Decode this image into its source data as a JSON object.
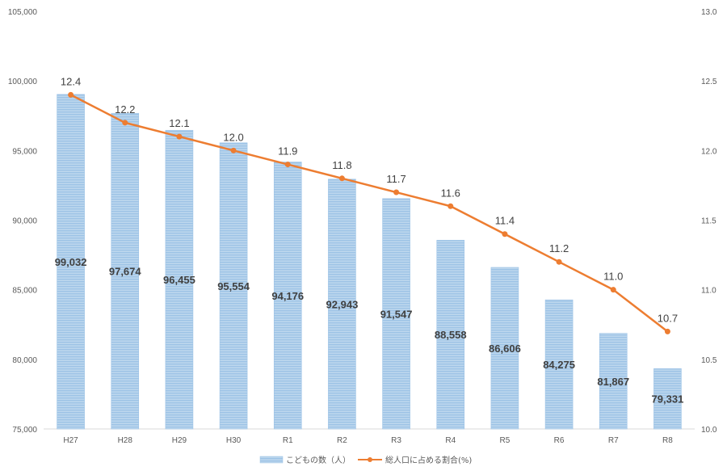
{
  "chart_data": {
    "type": "bar",
    "categories": [
      "H27",
      "H28",
      "H29",
      "H30",
      "R1",
      "R2",
      "R3",
      "R4",
      "R5",
      "R6",
      "R7",
      "R8"
    ],
    "series": [
      {
        "name": "こどもの数（人）",
        "type": "bar",
        "axis": "left",
        "color": "#9DC3E6",
        "values": [
          99032,
          97674,
          96455,
          95554,
          94176,
          92943,
          91547,
          88558,
          86606,
          84275,
          81867,
          79331
        ],
        "labels": [
          "99,032",
          "97,674",
          "96,455",
          "95,554",
          "94,176",
          "92,943",
          "91,547",
          "88,558",
          "86,606",
          "84,275",
          "81,867",
          "79,331"
        ]
      },
      {
        "name": "総人口に占める割合(%)",
        "type": "line",
        "axis": "right",
        "color": "#ED7D31",
        "values": [
          12.4,
          12.2,
          12.1,
          12.0,
          11.9,
          11.8,
          11.7,
          11.6,
          11.4,
          11.2,
          11.0,
          10.7
        ],
        "labels": [
          "12.4",
          "12.2",
          "12.1",
          "12.0",
          "11.9",
          "11.8",
          "11.7",
          "11.6",
          "11.4",
          "11.2",
          "11.0",
          "10.7"
        ]
      }
    ],
    "y_left": {
      "min": 75000,
      "max": 105000,
      "ticks": [
        75000,
        80000,
        85000,
        90000,
        95000,
        100000,
        105000
      ],
      "tick_labels": [
        "75,000",
        "80,000",
        "85,000",
        "90,000",
        "95,000",
        "100,000",
        "105,000"
      ]
    },
    "y_right": {
      "min": 10.0,
      "max": 13.0,
      "ticks": [
        10.0,
        10.5,
        11.0,
        11.5,
        12.0,
        12.5,
        13.0
      ],
      "tick_labels": [
        "10.0",
        "10.5",
        "11.0",
        "11.5",
        "12.0",
        "12.5",
        "13.0"
      ]
    },
    "grid": false,
    "legend": "bottom"
  }
}
